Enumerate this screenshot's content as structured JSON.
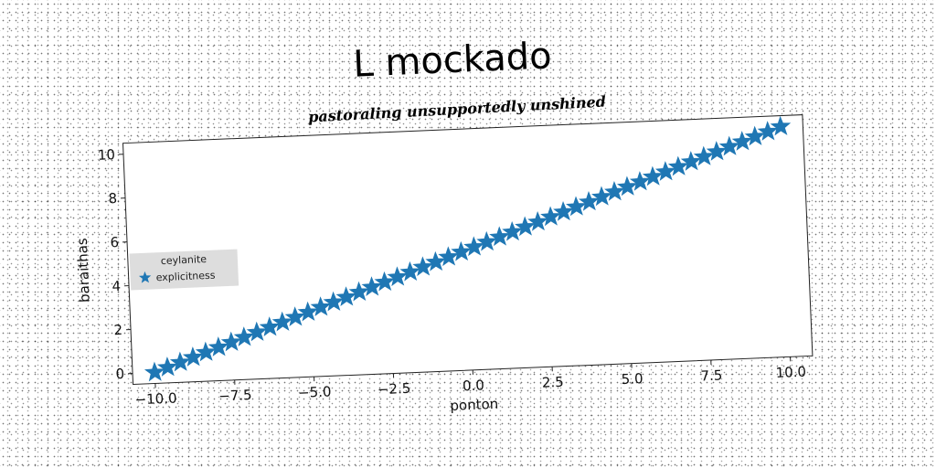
{
  "chart_data": {
    "type": "scatter",
    "title": "L mockado",
    "subtitle": "pastoraling unsupportedly unshined",
    "xlabel": "ponton",
    "ylabel": "baraithas",
    "xlim": [
      -10.7,
      10.7
    ],
    "ylim": [
      -0.5,
      10.5
    ],
    "x_ticks": [
      -10.0,
      -7.5,
      -5.0,
      -2.5,
      0.0,
      2.5,
      5.0,
      7.5,
      10.0
    ],
    "x_tick_labels": [
      "−10.0",
      "−7.5",
      "−5.0",
      "−2.5",
      "0.0",
      "2.5",
      "5.0",
      "7.5",
      "10.0"
    ],
    "y_ticks": [
      0,
      2,
      4,
      6,
      8,
      10
    ],
    "y_tick_labels": [
      "0",
      "2",
      "4",
      "6",
      "8",
      "10"
    ],
    "grid": false,
    "legend": {
      "title": "ceylanite",
      "placement": "center-left",
      "entries": [
        "explicitness"
      ]
    },
    "series": [
      {
        "name": "explicitness",
        "marker": "star",
        "color": "#1f77b4",
        "x": [
          -10.0,
          -9.5918,
          -9.1837,
          -8.7755,
          -8.3673,
          -7.9592,
          -7.551,
          -7.1429,
          -6.7347,
          -6.3265,
          -5.9184,
          -5.5102,
          -5.102,
          -4.6939,
          -4.2857,
          -3.8776,
          -3.4694,
          -3.0612,
          -2.6531,
          -2.2449,
          -1.8367,
          -1.4286,
          -1.0204,
          -0.6122,
          -0.2041,
          0.2041,
          0.6122,
          1.0204,
          1.4286,
          1.8367,
          2.2449,
          2.6531,
          3.0612,
          3.4694,
          3.8776,
          4.2857,
          4.6939,
          5.102,
          5.5102,
          5.9184,
          6.3265,
          6.7347,
          7.1429,
          7.551,
          7.9592,
          8.3673,
          8.7755,
          9.1837,
          9.5918,
          10.0
        ],
        "y": [
          0.0,
          0.2041,
          0.4082,
          0.6122,
          0.8163,
          1.0204,
          1.2245,
          1.4286,
          1.6327,
          1.8367,
          2.0408,
          2.2449,
          2.449,
          2.6531,
          2.8571,
          3.0612,
          3.2653,
          3.4694,
          3.6735,
          3.8776,
          4.0816,
          4.2857,
          4.4898,
          4.6939,
          4.898,
          5.102,
          5.3061,
          5.5102,
          5.7143,
          5.9184,
          6.1224,
          6.3265,
          6.5306,
          6.7347,
          6.9388,
          7.1429,
          7.3469,
          7.551,
          7.7551,
          7.9592,
          8.1633,
          8.3673,
          8.5714,
          8.7755,
          8.9796,
          9.1837,
          9.3878,
          9.5918,
          9.7959,
          10.0
        ]
      }
    ]
  }
}
